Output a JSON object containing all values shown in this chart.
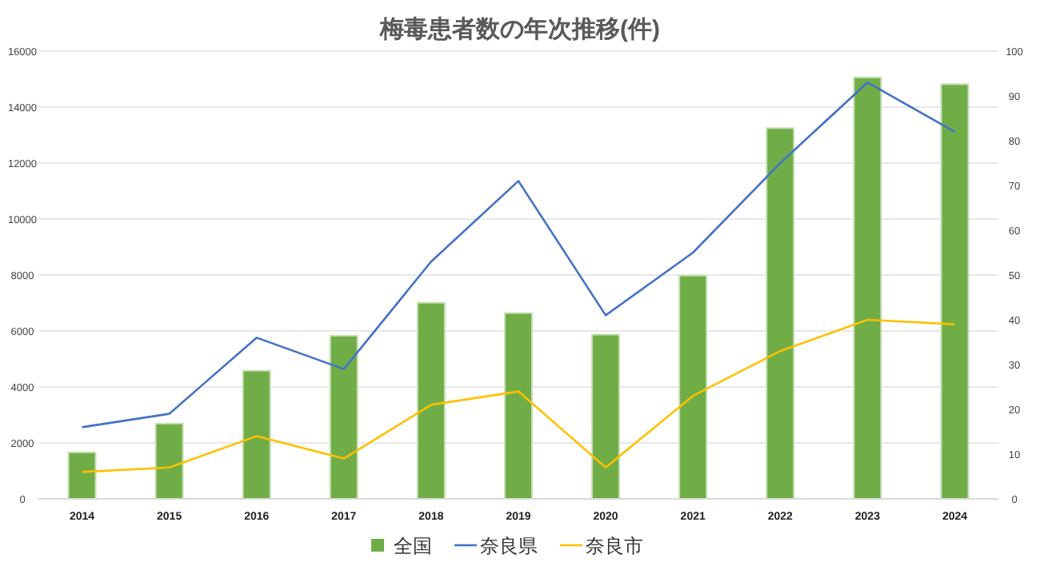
{
  "chart_data": {
    "type": "bar",
    "title": "梅毒患者数の年次推移(件)",
    "categories": [
      "2014",
      "2015",
      "2016",
      "2017",
      "2018",
      "2019",
      "2020",
      "2021",
      "2022",
      "2023",
      "2024"
    ],
    "series": [
      {
        "name": "全国",
        "color": "#70ad47",
        "values": [
          1660,
          2690,
          4580,
          5830,
          7010,
          6640,
          5870,
          7980,
          13250,
          15060,
          14820
        ]
      },
      {
        "name": "奈良県",
        "type": "line",
        "axis": "y2",
        "color": "#4472c4",
        "values": [
          16,
          19,
          36,
          29,
          53,
          71,
          41,
          55,
          75,
          93,
          82
        ]
      },
      {
        "name": "奈良市",
        "type": "line",
        "axis": "y2",
        "color": "#ffc000",
        "values": [
          6,
          7,
          14,
          9,
          21,
          24,
          7,
          23,
          33,
          40,
          39
        ]
      }
    ],
    "ylim": [
      0,
      16000
    ],
    "yticks": [
      0,
      2000,
      4000,
      6000,
      8000,
      10000,
      12000,
      14000,
      16000
    ],
    "y2lim": [
      0,
      100
    ],
    "y2ticks": [
      0,
      10,
      20,
      30,
      40,
      50,
      60,
      70,
      80,
      90,
      100
    ],
    "grid": "y",
    "legend": "bottom",
    "marker": "none",
    "line_style": "solid"
  }
}
